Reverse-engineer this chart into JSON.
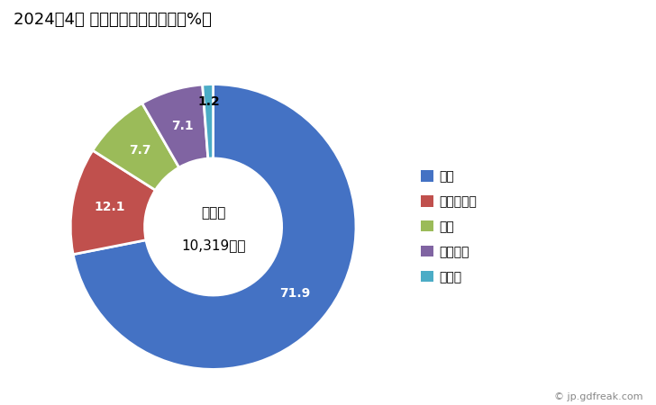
{
  "title": "2024年4月 輸出相手国のシェア（%）",
  "labels": [
    "韓国",
    "フィリピン",
    "中国",
    "ベトナム",
    "その他"
  ],
  "values": [
    71.9,
    12.1,
    7.7,
    7.1,
    1.2
  ],
  "colors": [
    "#4472c4",
    "#c0504d",
    "#9bbb59",
    "#8064a2",
    "#4bacc6"
  ],
  "label_colors": [
    "white",
    "white",
    "white",
    "white",
    "white"
  ],
  "center_label": "総　額",
  "center_value": "10,319万円",
  "watermark": "© jp.gdfreak.com",
  "background_color": "#ffffff",
  "title_fontsize": 13,
  "legend_fontsize": 10,
  "label_fontsize": 10
}
